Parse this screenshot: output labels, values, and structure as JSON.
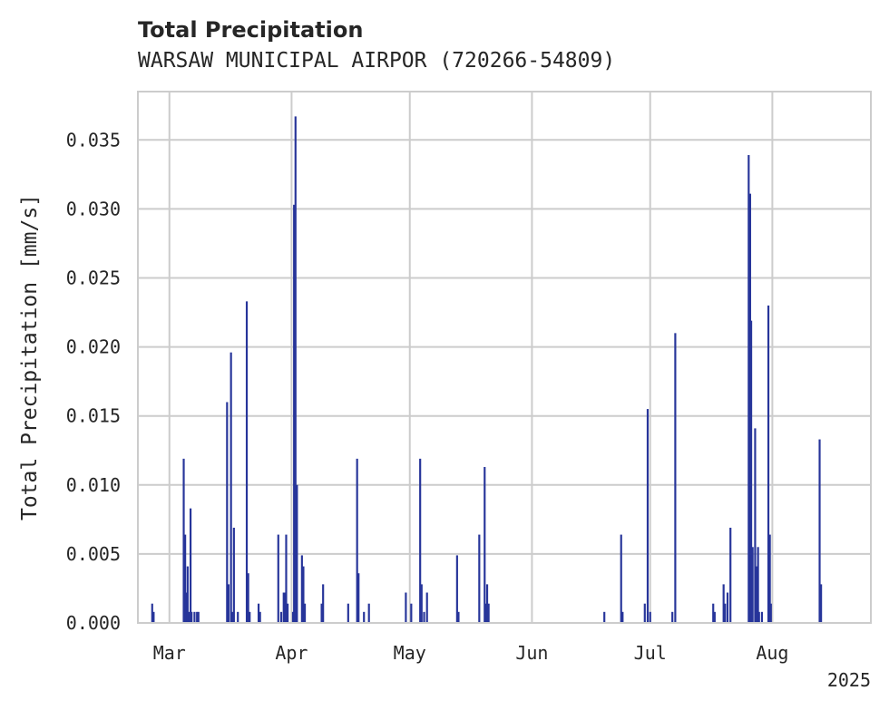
{
  "chart_data": {
    "type": "bar",
    "title": "Total Precipitation",
    "subtitle": "WARSAW MUNICIPAL AIRPOR (720266-54809)",
    "xlabel": "",
    "ylabel": "Total Precipitation [mm/s]",
    "x_range": [
      "2025-02-21",
      "2025-08-26"
    ],
    "x_ticks": [
      {
        "date": "2025-03-01",
        "label": "Mar"
      },
      {
        "date": "2025-04-01",
        "label": "Apr"
      },
      {
        "date": "2025-05-01",
        "label": "May"
      },
      {
        "date": "2025-06-01",
        "label": "Jun"
      },
      {
        "date": "2025-07-01",
        "label": "Jul"
      },
      {
        "date": "2025-08-01",
        "label": "Aug"
      }
    ],
    "x_offset_label": "2025",
    "ylim": [
      0,
      0.0385
    ],
    "y_ticks": [
      0.0,
      0.005,
      0.01,
      0.015,
      0.02,
      0.025,
      0.03,
      0.035
    ],
    "y_tick_labels": [
      "0.000",
      "0.005",
      "0.010",
      "0.015",
      "0.020",
      "0.025",
      "0.030",
      "0.035"
    ],
    "grid": true,
    "bar_color": "#27359a",
    "series": [
      {
        "x": [
          "2025-02-25",
          "2025-02-25",
          "2025-03-05",
          "2025-03-05",
          "2025-03-05",
          "2025-03-06",
          "2025-03-06",
          "2025-03-06",
          "2025-03-07",
          "2025-03-07",
          "2025-03-08",
          "2025-03-08",
          "2025-03-16",
          "2025-03-16",
          "2025-03-17",
          "2025-03-17",
          "2025-03-17",
          "2025-03-18",
          "2025-03-21",
          "2025-03-21",
          "2025-03-21",
          "2025-03-24",
          "2025-03-24",
          "2025-03-29",
          "2025-03-29",
          "2025-03-30",
          "2025-03-30",
          "2025-03-31",
          "2025-03-31",
          "2025-04-01",
          "2025-04-02",
          "2025-04-02",
          "2025-04-02",
          "2025-04-04",
          "2025-04-04",
          "2025-04-04",
          "2025-04-09",
          "2025-04-09",
          "2025-04-15",
          "2025-04-18",
          "2025-04-18",
          "2025-04-19",
          "2025-04-21",
          "2025-04-30",
          "2025-05-01",
          "2025-05-04",
          "2025-05-04",
          "2025-05-05",
          "2025-05-05",
          "2025-05-13",
          "2025-05-13",
          "2025-05-19",
          "2025-05-20",
          "2025-05-20",
          "2025-05-21",
          "2025-05-21",
          "2025-06-19",
          "2025-06-24",
          "2025-06-24",
          "2025-06-30",
          "2025-06-30",
          "2025-07-01",
          "2025-07-07",
          "2025-07-07",
          "2025-07-17",
          "2025-07-17",
          "2025-07-20",
          "2025-07-20",
          "2025-07-21",
          "2025-07-21",
          "2025-07-26",
          "2025-07-26",
          "2025-07-27",
          "2025-07-27",
          "2025-07-28",
          "2025-07-28",
          "2025-07-28",
          "2025-07-29",
          "2025-07-29",
          "2025-07-31",
          "2025-07-31",
          "2025-08-01",
          "2025-08-13",
          "2025-08-13"
        ],
        "values": [
          0.0014,
          0.0008,
          0.0022,
          0.0119,
          0.0064,
          0.0083,
          0.0041,
          0.0008,
          0.0008,
          0.0008,
          0.0008,
          0.0008,
          0.016,
          0.0028,
          0.0069,
          0.0196,
          0.0008,
          0.0008,
          0.0233,
          0.0036,
          0.0008,
          0.0014,
          0.0008,
          0.0008,
          0.0064,
          0.0022,
          0.0022,
          0.0064,
          0.0014,
          0.0008,
          0.0303,
          0.0367,
          0.01,
          0.0049,
          0.0041,
          0.0014,
          0.0014,
          0.0028,
          0.0014,
          0.0119,
          0.0036,
          0.0008,
          0.0014,
          0.0022,
          0.0014,
          0.0119,
          0.0028,
          0.0022,
          0.0008,
          0.0049,
          0.0008,
          0.0064,
          0.0113,
          0.0014,
          0.0028,
          0.0014,
          0.0008,
          0.0064,
          0.0008,
          0.0155,
          0.0014,
          0.0008,
          0.021,
          0.0008,
          0.0014,
          0.0008,
          0.0028,
          0.0014,
          0.0069,
          0.0022,
          0.0339,
          0.0311,
          0.0219,
          0.0055,
          0.0055,
          0.0141,
          0.0041,
          0.0008,
          0.0008,
          0.023,
          0.0064,
          0.0014,
          0.0133,
          0.0028
        ]
      }
    ]
  }
}
